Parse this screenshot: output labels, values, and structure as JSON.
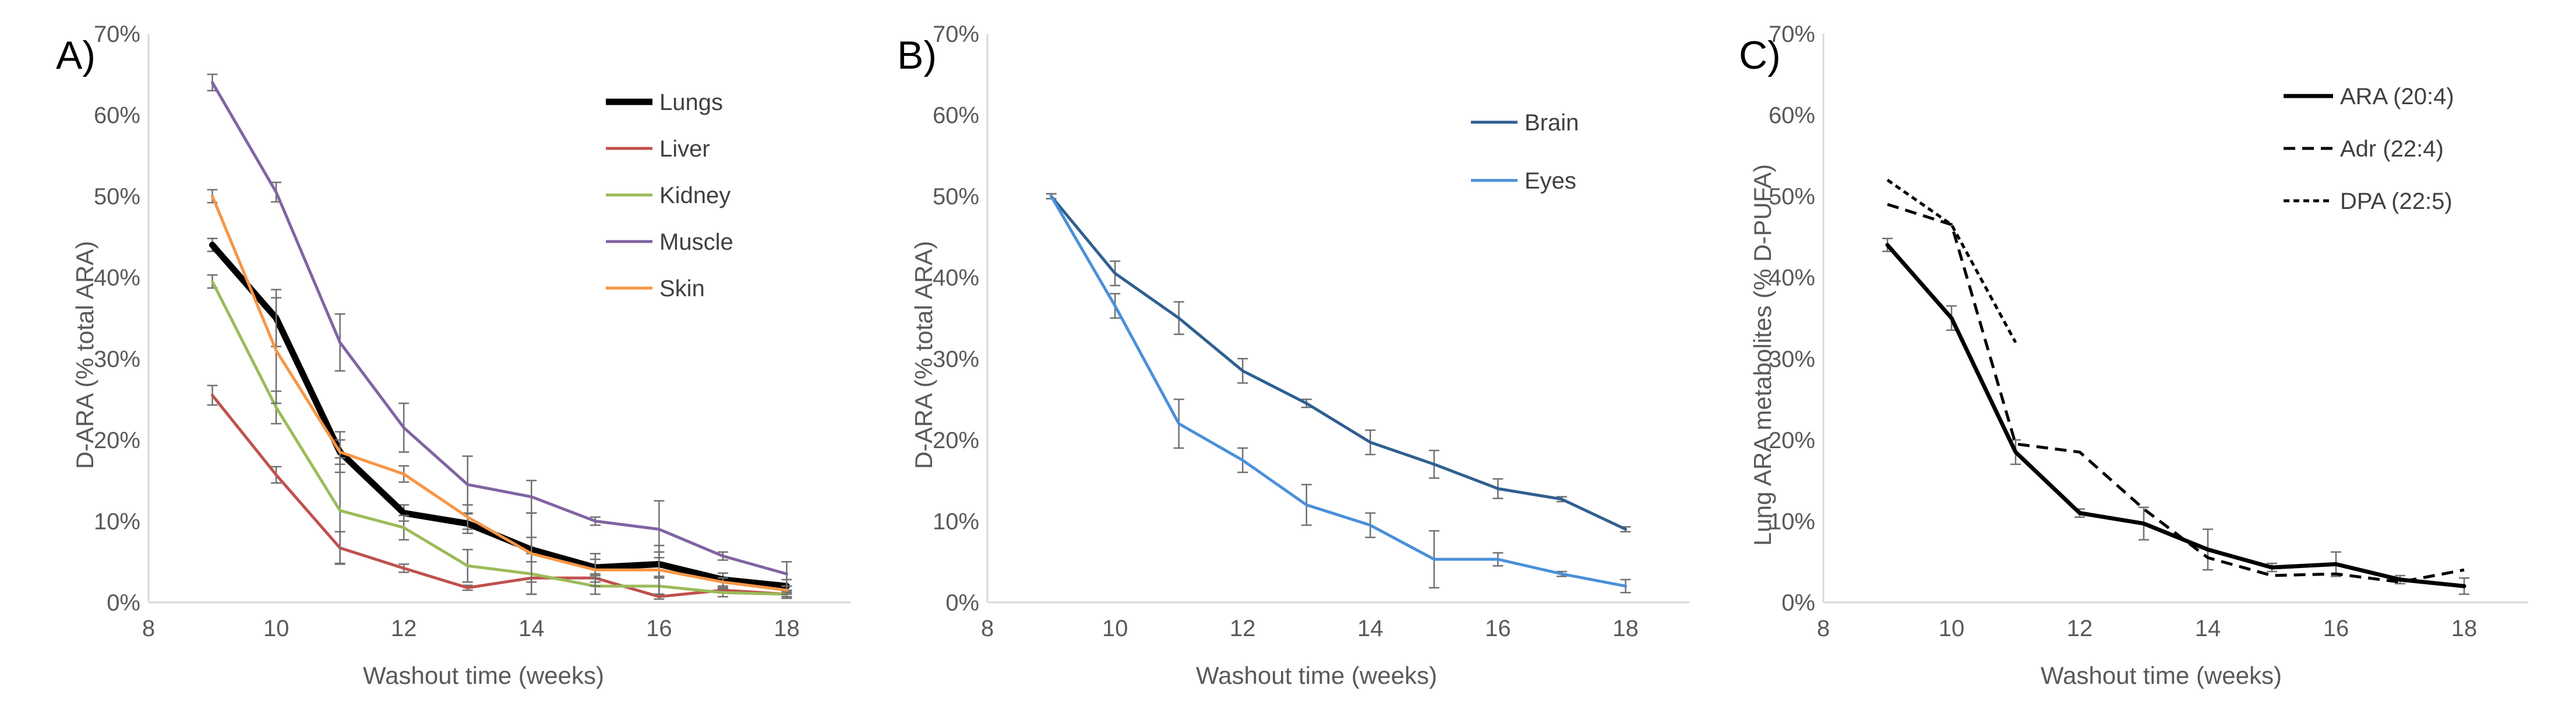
{
  "figure": {
    "panels": [
      {
        "label": "A)",
        "xlabel": "Washout time (weeks)",
        "ylabel": "D-ARA  (% total ARA)"
      },
      {
        "label": "B)",
        "xlabel": "Washout time (weeks)",
        "ylabel": "D-ARA  (% total ARA)"
      },
      {
        "label": "C)",
        "xlabel": "Washout time (weeks)",
        "ylabel": "Lung ARA metabolites (% D-PUFA)"
      }
    ]
  },
  "chart_data": [
    {
      "type": "line",
      "panel_label": "A)",
      "xlabel": "Washout time (weeks)",
      "ylabel": "D-ARA  (% total ARA)",
      "xlim": [
        8,
        19
      ],
      "xticks": [
        8,
        10,
        12,
        14,
        16,
        18
      ],
      "xtick_labels": [
        "8",
        "10",
        "12",
        "14",
        "16",
        "18"
      ],
      "ylim": [
        0,
        70
      ],
      "yticks": [
        0,
        10,
        20,
        30,
        40,
        50,
        60,
        70
      ],
      "ytick_labels": [
        "0%",
        "10%",
        "20%",
        "30%",
        "40%",
        "50%",
        "60%",
        "70%"
      ],
      "grid": false,
      "legend_position": "top-right",
      "series": [
        {
          "name": "Lungs",
          "color": "#000000",
          "dash": "",
          "width": 11,
          "x": [
            9,
            10,
            11,
            12,
            13,
            14,
            15,
            16,
            17,
            18
          ],
          "y": [
            44,
            35,
            18.5,
            11,
            9.7,
            6.5,
            4.3,
            4.7,
            2.8,
            2
          ],
          "err": [
            0.8,
            3.5,
            2.5,
            1,
            1.2,
            1.5,
            1,
            1.5,
            0.8,
            0.8
          ]
        },
        {
          "name": "Liver",
          "color": "#c0504d",
          "dash": "",
          "width": 5,
          "x": [
            9,
            10,
            11,
            12,
            13,
            14,
            15,
            16,
            17,
            18
          ],
          "y": [
            25.5,
            15.7,
            6.7,
            4.2,
            1.8,
            3,
            3,
            0.7,
            1.5,
            1
          ],
          "err": [
            1.2,
            1,
            2,
            0.5,
            0.3,
            0.5,
            0.5,
            0.3,
            0.3,
            0.3
          ]
        },
        {
          "name": "Kidney",
          "color": "#9bbb59",
          "dash": "",
          "width": 5,
          "x": [
            9,
            10,
            11,
            12,
            13,
            14,
            15,
            16,
            17,
            18
          ],
          "y": [
            39.5,
            24,
            11.3,
            9.2,
            4.5,
            3.5,
            2,
            2,
            1.2,
            1
          ],
          "err": [
            0.8,
            2,
            6.5,
            1.5,
            2,
            2.5,
            1,
            1,
            0.5,
            0.5
          ]
        },
        {
          "name": "Muscle",
          "color": "#8064a2",
          "dash": "",
          "width": 5,
          "x": [
            9,
            10,
            11,
            12,
            13,
            14,
            15,
            16,
            17,
            18
          ],
          "y": [
            64,
            50.5,
            32,
            21.5,
            14.5,
            13,
            10,
            9,
            5.7,
            3.5
          ],
          "err": [
            1,
            1.2,
            3.5,
            3,
            3.5,
            2,
            0.5,
            3.5,
            0.5,
            1.5
          ]
        },
        {
          "name": "Skin",
          "color": "#f79646",
          "dash": "",
          "width": 5,
          "x": [
            9,
            10,
            11,
            12,
            13,
            14,
            15,
            16,
            17,
            18
          ],
          "y": [
            50,
            31,
            18.5,
            15.8,
            10.5,
            6,
            4,
            4,
            2.5,
            1.5
          ],
          "err": [
            0.8,
            6.5,
            1.5,
            1,
            1.5,
            5,
            2,
            3,
            0.5,
            0.5
          ]
        }
      ]
    },
    {
      "type": "line",
      "panel_label": "B)",
      "xlabel": "Washout time (weeks)",
      "ylabel": "D-ARA  (% total ARA)",
      "xlim": [
        8,
        19
      ],
      "xticks": [
        8,
        10,
        12,
        14,
        16,
        18
      ],
      "xtick_labels": [
        "8",
        "10",
        "12",
        "14",
        "16",
        "18"
      ],
      "ylim": [
        0,
        70
      ],
      "yticks": [
        0,
        10,
        20,
        30,
        40,
        50,
        60,
        70
      ],
      "ytick_labels": [
        "0%",
        "10%",
        "20%",
        "30%",
        "40%",
        "50%",
        "60%",
        "70%"
      ],
      "grid": false,
      "legend_position": "top-right",
      "series": [
        {
          "name": "Brain",
          "color": "#2f5f8f",
          "dash": "",
          "width": 5,
          "x": [
            9,
            10,
            11,
            12,
            13,
            14,
            15,
            16,
            17,
            18
          ],
          "y": [
            50,
            40.5,
            35,
            28.5,
            24.5,
            19.7,
            17,
            14,
            12.7,
            9
          ],
          "err": [
            0.3,
            1.5,
            2,
            1.5,
            0.5,
            1.5,
            1.7,
            1.2,
            0.3,
            0.3
          ]
        },
        {
          "name": "Eyes",
          "color": "#4a90d9",
          "dash": "",
          "width": 5,
          "x": [
            9,
            10,
            11,
            12,
            13,
            14,
            15,
            16,
            17,
            18
          ],
          "y": [
            50,
            36.5,
            22,
            17.5,
            12,
            9.5,
            5.3,
            5.3,
            3.5,
            2
          ],
          "err": [
            0.3,
            1.5,
            3,
            1.5,
            2.5,
            1.5,
            3.5,
            0.8,
            0.3,
            0.8
          ]
        }
      ]
    },
    {
      "type": "line",
      "panel_label": "C)",
      "xlabel": "Washout time (weeks)",
      "ylabel": "Lung ARA metabolites (% D-PUFA)",
      "xlim": [
        8,
        19
      ],
      "xticks": [
        8,
        10,
        12,
        14,
        16,
        18
      ],
      "xtick_labels": [
        "8",
        "10",
        "12",
        "14",
        "16",
        "18"
      ],
      "ylim": [
        0,
        70
      ],
      "yticks": [
        0,
        10,
        20,
        30,
        40,
        50,
        60,
        70
      ],
      "ytick_labels": [
        "0%",
        "10%",
        "20%",
        "30%",
        "40%",
        "50%",
        "60%",
        "70%"
      ],
      "grid": false,
      "legend_position": "top-right",
      "series": [
        {
          "name": "ARA (20:4)",
          "color": "#000000",
          "dash": "",
          "width": 7,
          "x": [
            9,
            10,
            11,
            12,
            13,
            14,
            15,
            16,
            17,
            18
          ],
          "y": [
            44,
            35,
            18.5,
            11,
            9.7,
            6.5,
            4.3,
            4.7,
            2.8,
            2
          ],
          "err": [
            0.8,
            1.5,
            1.5,
            0.5,
            2,
            2.5,
            0.5,
            1.5,
            0.5,
            1
          ]
        },
        {
          "name": "Adr (22:4)",
          "color": "#000000",
          "dash": "20,12",
          "width": 5,
          "x": [
            9,
            10,
            11,
            12,
            13,
            14,
            15,
            16,
            17,
            18
          ],
          "y": [
            49,
            46.5,
            19.5,
            18.5,
            11.5,
            5.5,
            3.3,
            3.5,
            2.5,
            4
          ],
          "err": []
        },
        {
          "name": "DPA (22:5)",
          "color": "#000000",
          "dash": "10,7",
          "width": 5,
          "x": [
            9,
            10,
            11
          ],
          "y": [
            52,
            46.5,
            32
          ],
          "err": []
        }
      ]
    }
  ]
}
